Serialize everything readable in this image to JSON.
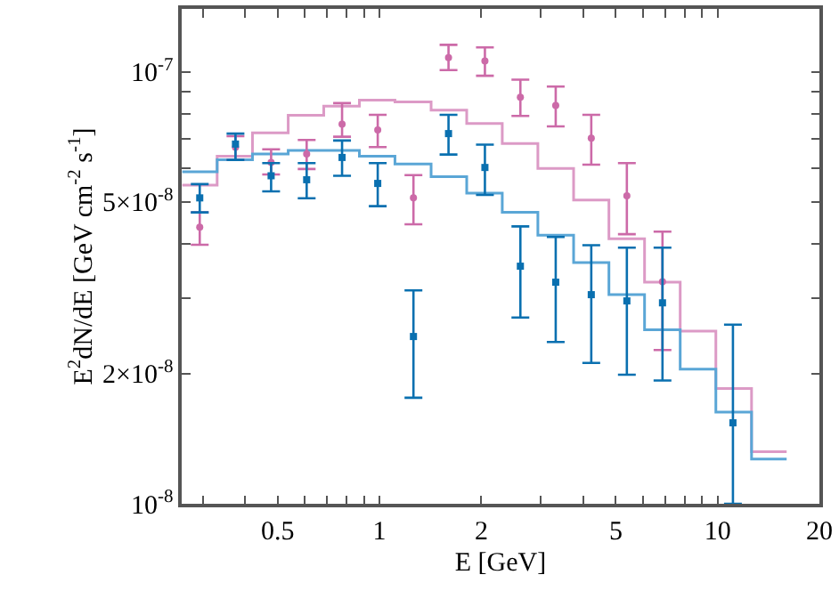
{
  "chart_data": {
    "type": "scatter",
    "xlabel": "E [GeV]",
    "ylabel": "E$^{2}$dN/dE [GeV cm$^{-2}$ s$^{-1}$]",
    "log": "xy",
    "xlim": [
      0.26,
      20
    ],
    "ylim": [
      1e-08,
      1.4e-07
    ],
    "xticks": [
      {
        "value": 0.3,
        "label": null
      },
      {
        "value": 0.4,
        "label": null
      },
      0.5,
      {
        "value": 0.6,
        "label": null
      },
      {
        "value": 0.7,
        "label": null
      },
      {
        "value": 0.8,
        "label": null
      },
      {
        "value": 0.9,
        "label": null
      },
      1,
      2,
      {
        "value": 3,
        "label": null
      },
      {
        "value": 4,
        "label": null
      },
      5,
      {
        "value": 6,
        "label": null
      },
      {
        "value": 7,
        "label": null
      },
      {
        "value": 8,
        "label": null
      },
      {
        "value": 9,
        "label": null
      },
      10,
      20
    ],
    "yticks": [
      {
        "value": 1e-08,
        "label": "10$^{-8}$"
      },
      {
        "value": 2e-08,
        "label": "2×10$^{-8}$"
      },
      {
        "value": 3e-08,
        "label": null
      },
      {
        "value": 4e-08,
        "label": null
      },
      {
        "value": 5e-08,
        "label": "5×10$^{-8}$"
      },
      {
        "value": 6e-08,
        "label": null
      },
      {
        "value": 7e-08,
        "label": null
      },
      {
        "value": 8e-08,
        "label": null
      },
      {
        "value": 9e-08,
        "label": null
      },
      {
        "value": 1e-07,
        "label": "10$^{-7}$"
      }
    ],
    "series": [
      {
        "type": "step",
        "marker": "none",
        "color": "#dc9ac6",
        "x": [
          0.261,
          0.331,
          0.421,
          0.537,
          0.684,
          0.872,
          1.111,
          1.421,
          1.811,
          2.307,
          2.94,
          3.75,
          4.77,
          6.08,
          7.75,
          9.88,
          12.6,
          16.0
        ],
        "values": [
          5.47e-08,
          6.38e-08,
          7.23e-08,
          7.94e-08,
          8.34e-08,
          8.61e-08,
          8.53e-08,
          8.16e-08,
          7.6e-08,
          6.83e-08,
          5.98e-08,
          5.05e-08,
          4.11e-08,
          3.26e-08,
          2.51e-08,
          1.85e-08,
          1.32e-08,
          1.32e-08
        ]
      },
      {
        "type": "step",
        "marker": "none",
        "color": "#5aa6d6",
        "x": [
          0.261,
          0.331,
          0.421,
          0.537,
          0.684,
          0.872,
          1.111,
          1.421,
          1.811,
          2.307,
          2.94,
          3.75,
          4.77,
          6.08,
          7.75,
          9.88,
          12.6,
          16.0
        ],
        "values": [
          5.87e-08,
          6.26e-08,
          6.46e-08,
          6.58e-08,
          6.58e-08,
          6.38e-08,
          6.12e-08,
          5.72e-08,
          5.24e-08,
          4.73e-08,
          4.19e-08,
          3.62e-08,
          3.05e-08,
          2.53e-08,
          2.05e-08,
          1.63e-08,
          1.27e-08,
          1.27e-08
        ]
      },
      {
        "marker": "circle",
        "color": "#cc6aa8",
        "x": [
          0.294,
          0.375,
          0.478,
          0.609,
          0.775,
          0.988,
          1.26,
          1.6,
          2.05,
          2.61,
          3.32,
          4.23,
          5.39,
          6.87
        ],
        "values": [
          4.37e-08,
          6.69e-08,
          6.17e-08,
          6.46e-08,
          7.57e-08,
          7.34e-08,
          5.11e-08,
          1.08e-07,
          1.06e-07,
          8.74e-08,
          8.37e-08,
          7.03e-08,
          5.17e-08,
          3.27e-08
        ],
        "errors": [
          [
            3.98e-08,
            4.73e-08
          ],
          [
            6.26e-08,
            7.1e-08
          ],
          [
            5.79e-08,
            6.62e-08
          ],
          [
            5.96e-08,
            6.96e-08
          ],
          [
            7.08e-08,
            8.47e-08
          ],
          [
            6.7e-08,
            7.96e-08
          ],
          [
            4.44e-08,
            5.77e-08
          ],
          [
            1.01e-07,
            1.156e-07
          ],
          [
            9.8e-08,
            1.14e-07
          ],
          [
            7.91e-08,
            9.6e-08
          ],
          [
            7.48e-08,
            9.25e-08
          ],
          [
            6.1e-08,
            7.96e-08
          ],
          [
            4.21e-08,
            6.15e-08
          ],
          [
            2.27e-08,
            4.27e-08
          ]
        ]
      },
      {
        "marker": "square",
        "color": "#0a70b0",
        "x": [
          0.294,
          0.375,
          0.478,
          0.609,
          0.775,
          0.988,
          1.26,
          1.6,
          2.05,
          2.61,
          3.32,
          4.23,
          5.39,
          6.87,
          11.1
        ],
        "values": [
          5.11e-08,
          6.81e-08,
          5.75e-08,
          5.63e-08,
          6.34e-08,
          5.52e-08,
          2.44e-08,
          7.2e-08,
          6.01e-08,
          3.55e-08,
          3.26e-08,
          3.05e-08,
          2.95e-08,
          2.92e-08,
          1.54e-08
        ],
        "errors": [
          [
            4.73e-08,
            5.5e-08
          ],
          [
            6.26e-08,
            7.2e-08
          ],
          [
            5.29e-08,
            6.15e-08
          ],
          [
            5.1e-08,
            6.15e-08
          ],
          [
            5.75e-08,
            6.94e-08
          ],
          [
            4.89e-08,
            6.15e-08
          ],
          [
            1.76e-08,
            3.12e-08
          ],
          [
            6.44e-08,
            7.96e-08
          ],
          [
            5.19e-08,
            6.79e-08
          ],
          [
            2.7e-08,
            4.39e-08
          ],
          [
            2.37e-08,
            4.15e-08
          ],
          [
            2.12e-08,
            3.97e-08
          ],
          [
            1.99e-08,
            3.92e-08
          ],
          [
            1.93e-08,
            3.92e-08
          ],
          [
            1e-08,
            2.6e-08
          ]
        ]
      }
    ]
  }
}
